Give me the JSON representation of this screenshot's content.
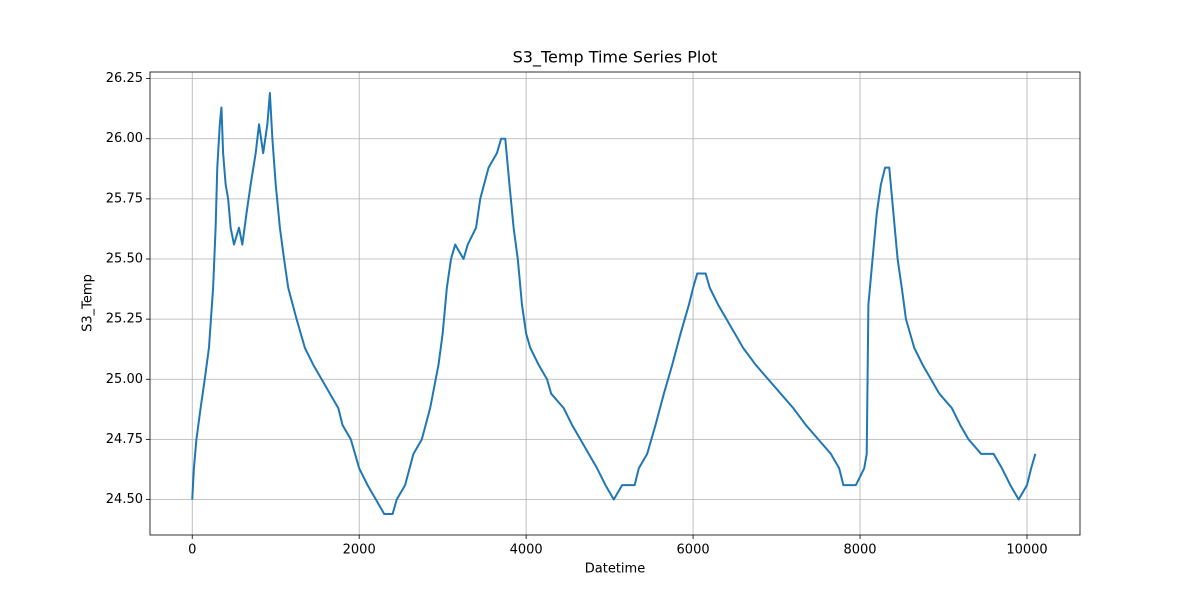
{
  "chart_data": {
    "type": "line",
    "title": "S3_Temp Time Series Plot",
    "x_label": "Datetime",
    "y_label": "S3_Temp",
    "color": "#1f77b4",
    "grid": true,
    "x": [
      0,
      20,
      50,
      100,
      150,
      200,
      250,
      280,
      300,
      330,
      350,
      370,
      400,
      430,
      460,
      500,
      560,
      600,
      650,
      700,
      760,
      800,
      850,
      900,
      930,
      960,
      1000,
      1050,
      1100,
      1150,
      1250,
      1350,
      1450,
      1550,
      1650,
      1750,
      1800,
      1900,
      1950,
      2000,
      2100,
      2200,
      2300,
      2400,
      2450,
      2550,
      2650,
      2750,
      2850,
      2950,
      3000,
      3050,
      3100,
      3150,
      3250,
      3300,
      3400,
      3450,
      3550,
      3650,
      3700,
      3750,
      3800,
      3850,
      3900,
      3950,
      4000,
      4050,
      4150,
      4250,
      4300,
      4450,
      4550,
      4650,
      4750,
      4850,
      4950,
      5050,
      5150,
      5300,
      5350,
      5450,
      5550,
      5650,
      5750,
      5850,
      5950,
      6000,
      6050,
      6150,
      6200,
      6300,
      6400,
      6500,
      6600,
      6750,
      6900,
      7050,
      7200,
      7350,
      7500,
      7650,
      7750,
      7800,
      7950,
      8050,
      8080,
      8100,
      8150,
      8200,
      8250,
      8300,
      8350,
      8400,
      8450,
      8500,
      8550,
      8650,
      8750,
      8850,
      8950,
      9100,
      9200,
      9300,
      9450,
      9600,
      9700,
      9800,
      9900,
      10000,
      10050,
      10100
    ],
    "values": [
      24.5,
      24.63,
      24.75,
      24.88,
      25.0,
      25.13,
      25.38,
      25.63,
      25.88,
      26.06,
      26.13,
      25.94,
      25.81,
      25.75,
      25.63,
      25.56,
      25.63,
      25.56,
      25.69,
      25.81,
      25.94,
      26.06,
      25.94,
      26.06,
      26.19,
      26.0,
      25.81,
      25.63,
      25.5,
      25.38,
      25.25,
      25.13,
      25.06,
      25.0,
      24.94,
      24.88,
      24.81,
      24.75,
      24.69,
      24.63,
      24.56,
      24.5,
      24.44,
      24.44,
      24.5,
      24.56,
      24.69,
      24.75,
      24.88,
      25.06,
      25.19,
      25.38,
      25.5,
      25.56,
      25.5,
      25.56,
      25.63,
      25.75,
      25.88,
      25.94,
      26.0,
      26.0,
      25.81,
      25.63,
      25.5,
      25.31,
      25.19,
      25.13,
      25.06,
      25.0,
      24.94,
      24.88,
      24.81,
      24.75,
      24.69,
      24.63,
      24.56,
      24.5,
      24.56,
      24.56,
      24.63,
      24.69,
      24.81,
      24.94,
      25.06,
      25.19,
      25.31,
      25.38,
      25.44,
      25.44,
      25.38,
      25.31,
      25.25,
      25.19,
      25.13,
      25.06,
      25.0,
      24.94,
      24.88,
      24.81,
      24.75,
      24.69,
      24.63,
      24.56,
      24.56,
      24.63,
      24.69,
      25.31,
      25.5,
      25.69,
      25.81,
      25.88,
      25.88,
      25.69,
      25.5,
      25.38,
      25.25,
      25.13,
      25.06,
      25.0,
      24.94,
      24.88,
      24.81,
      24.75,
      24.69,
      24.69,
      24.63,
      24.56,
      24.5,
      24.56,
      24.63,
      24.69
    ],
    "xlim": [
      -506,
      10635
    ],
    "xticks": [
      0,
      2000,
      4000,
      6000,
      8000,
      10000
    ],
    "ylim": [
      24.3525,
      26.2775
    ],
    "yticks": [
      {
        "value": 24.5,
        "label": "24.50"
      },
      {
        "value": 24.75,
        "label": "24.75"
      },
      {
        "value": 25.0,
        "label": "25.00"
      },
      {
        "value": 25.25,
        "label": "25.25"
      },
      {
        "value": 25.5,
        "label": "25.50"
      },
      {
        "value": 25.75,
        "label": "25.75"
      },
      {
        "value": 26.0,
        "label": "26.00"
      },
      {
        "value": 26.25,
        "label": "26.25"
      }
    ]
  }
}
